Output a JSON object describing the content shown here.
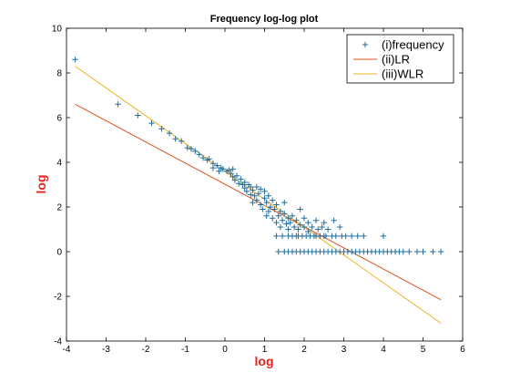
{
  "chart_data": {
    "type": "scatter",
    "title": "Frequency log-log plot",
    "xlabel": "log",
    "ylabel": "log",
    "xlim": [
      -4,
      6
    ],
    "ylim": [
      -4,
      10
    ],
    "xticks": [
      -4,
      -3,
      -2,
      -1,
      0,
      1,
      2,
      3,
      4,
      5,
      6
    ],
    "yticks": [
      -4,
      -2,
      0,
      2,
      4,
      6,
      8,
      10
    ],
    "xtick_labels": [
      "-4",
      "-3",
      "-2",
      "-1",
      "0",
      "1",
      "2",
      "3",
      "4",
      "5",
      "6"
    ],
    "ytick_labels": [
      "-4",
      "-2",
      "0",
      "2",
      "4",
      "6",
      "8",
      "10"
    ],
    "grid": false,
    "legend_position": "top-right",
    "label_color": "#e8221b",
    "series": [
      {
        "name": "(i)frequency",
        "kind": "scatter",
        "marker": "+",
        "color": "#1f6d9e",
        "points": [
          [
            -3.78,
            8.6
          ],
          [
            -2.7,
            6.6
          ],
          [
            -2.2,
            6.1
          ],
          [
            -1.85,
            5.75
          ],
          [
            -1.6,
            5.5
          ],
          [
            -1.4,
            5.3
          ],
          [
            -1.25,
            5.05
          ],
          [
            -1.1,
            4.95
          ],
          [
            -0.95,
            4.65
          ],
          [
            -0.85,
            4.6
          ],
          [
            -0.75,
            4.5
          ],
          [
            -0.65,
            4.35
          ],
          [
            -0.55,
            4.2
          ],
          [
            -0.45,
            4.1
          ],
          [
            -0.4,
            4.15
          ],
          [
            -0.3,
            3.95
          ],
          [
            -0.3,
            3.75
          ],
          [
            -0.2,
            3.85
          ],
          [
            -0.15,
            3.6
          ],
          [
            -0.1,
            3.75
          ],
          [
            -0.05,
            3.7
          ],
          [
            0.05,
            3.6
          ],
          [
            0.1,
            3.65
          ],
          [
            0.15,
            3.5
          ],
          [
            0.2,
            3.35
          ],
          [
            0.2,
            3.7
          ],
          [
            0.25,
            3.2
          ],
          [
            0.3,
            3.4
          ],
          [
            0.35,
            3.05
          ],
          [
            0.4,
            3.25
          ],
          [
            0.45,
            3.0
          ],
          [
            0.5,
            2.85
          ],
          [
            0.5,
            3.1
          ],
          [
            0.55,
            2.7
          ],
          [
            0.6,
            3.0
          ],
          [
            0.65,
            2.9
          ],
          [
            0.65,
            2.55
          ],
          [
            0.7,
            2.75
          ],
          [
            0.7,
            2.2
          ],
          [
            0.75,
            2.5
          ],
          [
            0.8,
            2.9
          ],
          [
            0.8,
            2.3
          ],
          [
            0.85,
            2.6
          ],
          [
            0.9,
            2.1
          ],
          [
            0.9,
            2.8
          ],
          [
            0.95,
            1.9
          ],
          [
            1.0,
            2.4
          ],
          [
            1.0,
            2.7
          ],
          [
            1.05,
            2.2
          ],
          [
            1.05,
            1.6
          ],
          [
            1.1,
            2.5
          ],
          [
            1.1,
            1.8
          ],
          [
            1.15,
            2.0
          ],
          [
            1.2,
            2.3
          ],
          [
            1.2,
            1.5
          ],
          [
            1.25,
            1.9
          ],
          [
            1.3,
            2.1
          ],
          [
            1.3,
            1.3
          ],
          [
            1.35,
            1.6
          ],
          [
            1.4,
            1.8
          ],
          [
            1.4,
            1.1
          ],
          [
            1.45,
            1.4
          ],
          [
            1.5,
            1.7
          ],
          [
            1.5,
            2.2
          ],
          [
            1.55,
            1.25
          ],
          [
            1.6,
            1.5
          ],
          [
            1.6,
            1.0
          ],
          [
            1.65,
            1.3
          ],
          [
            1.7,
            1.6
          ],
          [
            1.7,
            0.7
          ],
          [
            1.75,
            1.1
          ],
          [
            1.8,
            1.4
          ],
          [
            1.8,
            0.7
          ],
          [
            1.85,
            1.0
          ],
          [
            1.9,
            1.2
          ],
          [
            1.9,
            1.9
          ],
          [
            1.95,
            0.7
          ],
          [
            2.0,
            1.1
          ],
          [
            2.0,
            1.5
          ],
          [
            2.05,
            0.7
          ],
          [
            2.1,
            0.9
          ],
          [
            2.1,
            1.3
          ],
          [
            2.15,
            0.7
          ],
          [
            2.2,
            1.1
          ],
          [
            2.25,
            0.7
          ],
          [
            2.3,
            1.4
          ],
          [
            2.3,
            0.7
          ],
          [
            2.35,
            1.0
          ],
          [
            2.4,
            0.7
          ],
          [
            2.45,
            1.1
          ],
          [
            2.5,
            0.7
          ],
          [
            2.5,
            1.3
          ],
          [
            2.55,
            0.7
          ],
          [
            2.6,
            1.0
          ],
          [
            2.7,
            0.7
          ],
          [
            2.75,
            1.4
          ],
          [
            2.8,
            0.7
          ],
          [
            2.9,
            1.1
          ],
          [
            2.95,
            0.7
          ],
          [
            3.05,
            0.7
          ],
          [
            3.2,
            0.7
          ],
          [
            3.35,
            0.7
          ],
          [
            3.5,
            0.7
          ],
          [
            4.0,
            0.7
          ],
          [
            1.3,
            0.7
          ],
          [
            1.45,
            0.7
          ],
          [
            1.6,
            0.7
          ],
          [
            1.85,
            0.7
          ],
          [
            1.35,
            0.0
          ],
          [
            1.5,
            0.0
          ],
          [
            1.6,
            0.0
          ],
          [
            1.7,
            0.0
          ],
          [
            1.8,
            0.0
          ],
          [
            1.9,
            0.0
          ],
          [
            2.0,
            0.0
          ],
          [
            2.1,
            0.0
          ],
          [
            2.2,
            0.0
          ],
          [
            2.3,
            0.0
          ],
          [
            2.4,
            0.0
          ],
          [
            2.5,
            0.0
          ],
          [
            2.6,
            0.0
          ],
          [
            2.7,
            0.0
          ],
          [
            2.8,
            0.0
          ],
          [
            2.9,
            0.0
          ],
          [
            3.0,
            0.0
          ],
          [
            3.1,
            0.0
          ],
          [
            3.2,
            0.0
          ],
          [
            3.3,
            0.0
          ],
          [
            3.4,
            0.0
          ],
          [
            3.5,
            0.0
          ],
          [
            3.6,
            0.0
          ],
          [
            3.7,
            0.0
          ],
          [
            3.8,
            0.0
          ],
          [
            3.9,
            0.0
          ],
          [
            4.0,
            0.0
          ],
          [
            4.1,
            0.0
          ],
          [
            4.2,
            0.0
          ],
          [
            4.3,
            0.0
          ],
          [
            4.4,
            0.0
          ],
          [
            4.5,
            0.0
          ],
          [
            4.65,
            0.0
          ],
          [
            4.85,
            0.0
          ],
          [
            5.0,
            0.0
          ],
          [
            5.25,
            0.0
          ],
          [
            5.45,
            0.0
          ]
        ]
      },
      {
        "name": "(ii)LR",
        "kind": "line",
        "color": "#d95319",
        "x": [
          -3.78,
          5.45
        ],
        "y": [
          6.6,
          -2.15
        ]
      },
      {
        "name": "(iii)WLR",
        "kind": "line",
        "color": "#edb120",
        "x": [
          -3.78,
          5.45
        ],
        "y": [
          8.3,
          -3.2
        ]
      }
    ]
  }
}
